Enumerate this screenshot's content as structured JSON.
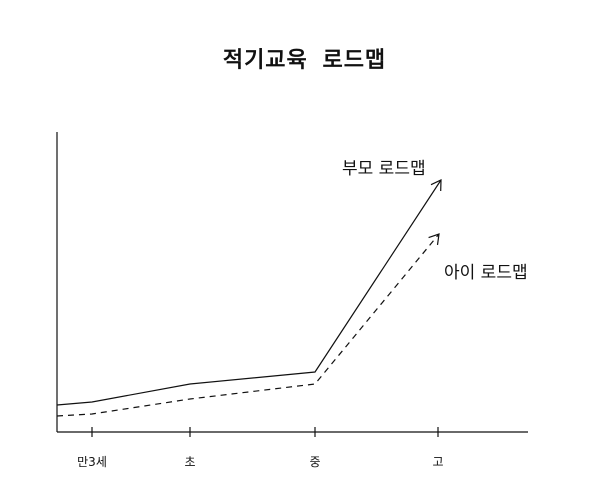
{
  "chart_data": {
    "type": "line",
    "title": "적기교육 로드맵",
    "categories": [
      "만3세",
      "초",
      "중",
      "고"
    ],
    "series": [
      {
        "name": "부모 로드맵",
        "style": "solid",
        "values": [
          1.0,
          1.6,
          2.0,
          8.4
        ]
      },
      {
        "name": "아이 로드맵",
        "style": "dashed",
        "values": [
          0.6,
          1.1,
          1.6,
          6.6
        ]
      }
    ],
    "ylim": [
      0,
      10
    ],
    "grid": false,
    "arrows": true
  }
}
